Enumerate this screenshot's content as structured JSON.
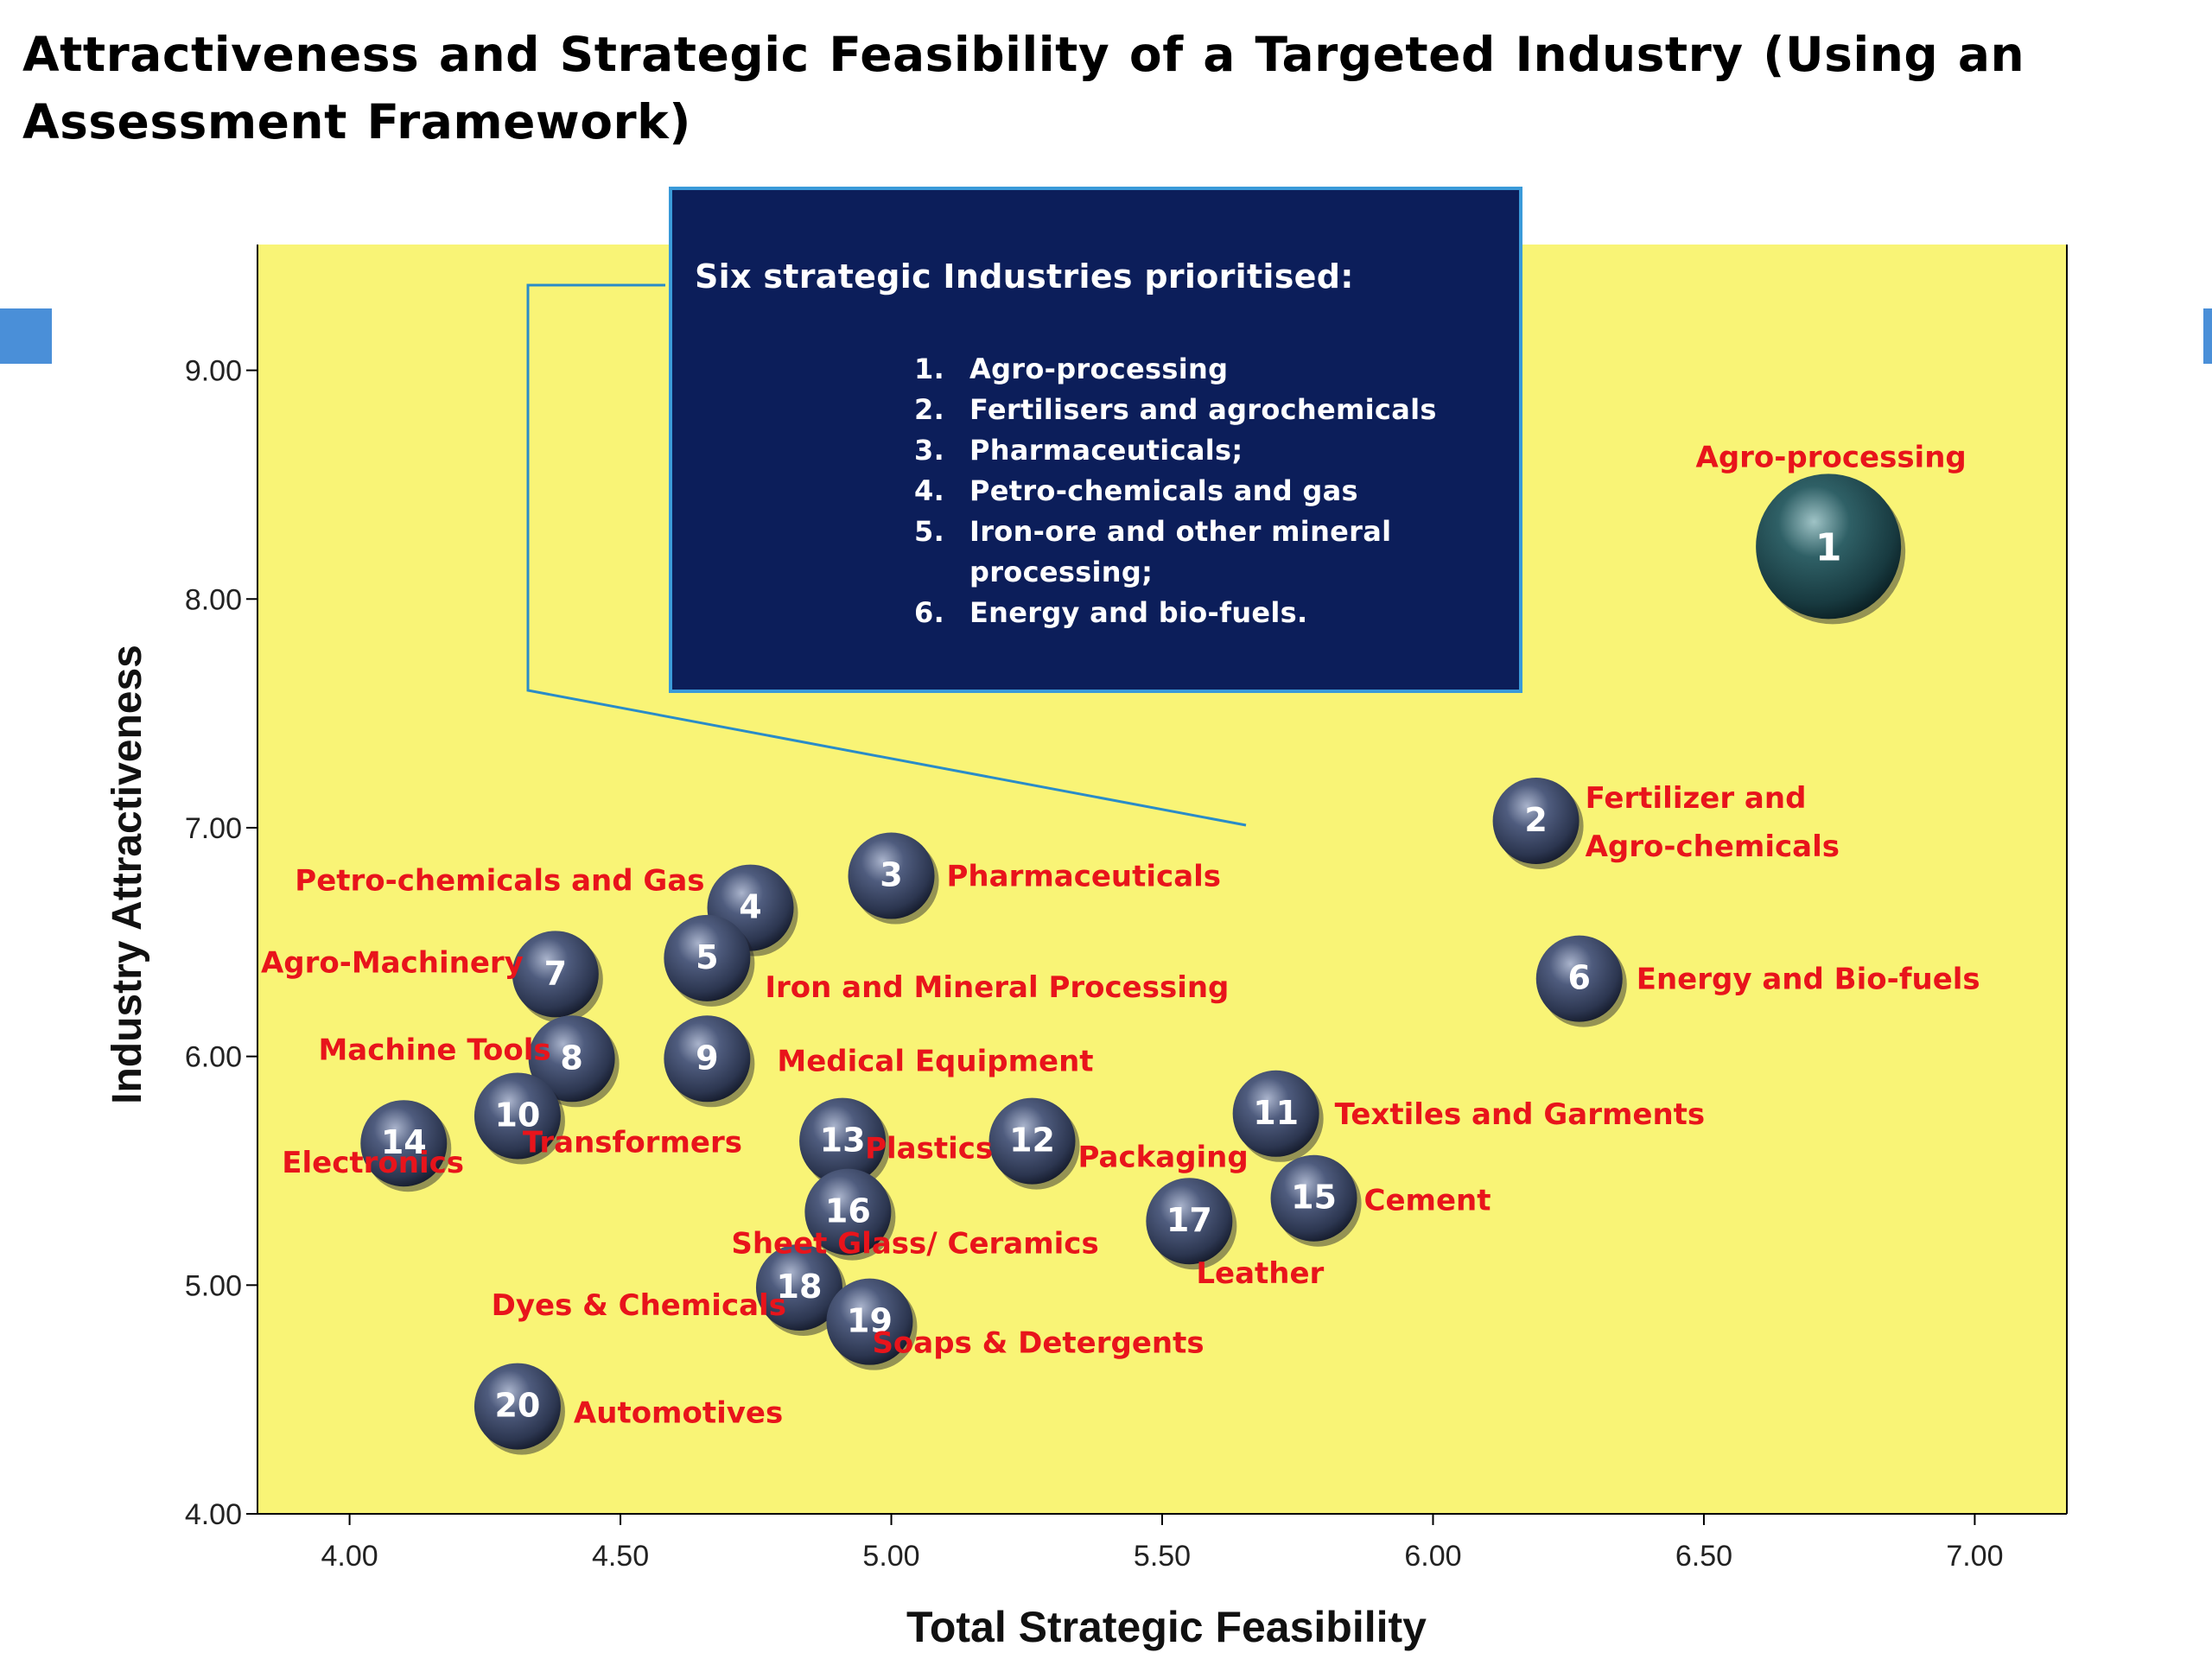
{
  "title": "Attractiveness and Strategic Feasibility of a Targeted Industry (Using   an Assessment Framework)",
  "callout": {
    "heading": "Six strategic Industries prioritised:",
    "items": [
      {
        "num": "1.",
        "text": "Agro-processing"
      },
      {
        "num": "2.",
        "text": "Fertilisers and agrochemicals"
      },
      {
        "num": "3.",
        "text": "Pharmaceuticals;"
      },
      {
        "num": "4.",
        "text": " Petro-chemicals and gas"
      },
      {
        "num": "5.",
        "text": "Iron-ore and other mineral processing;"
      },
      {
        "num": "6.",
        "text": "Energy and bio-fuels."
      }
    ]
  },
  "colors": {
    "plot_background": "#f9f476",
    "label": "#e8141b",
    "callout_background": "#0c1e5a",
    "callout_border": "#3a9ad9",
    "bubble": "#3d4a6a",
    "bubble_large": "#1f4a50",
    "side_marker": "#4a8fd8"
  },
  "chart_data": {
    "type": "scatter",
    "xlabel": "Total Strategic Feasibility",
    "ylabel": "Industry Attractiveness",
    "xlim": [
      3.83,
      7.17
    ],
    "ylim": [
      4.0,
      9.55
    ],
    "xticks": [
      "4.00",
      "4.50",
      "5.00",
      "5.50",
      "6.00",
      "6.50",
      "7.00"
    ],
    "yticks": [
      "4.00",
      "5.00",
      "6.00",
      "7.00",
      "8.00",
      "9.00"
    ],
    "grid": false,
    "points": [
      {
        "id": "1",
        "name": "Agro-processing",
        "x": 6.73,
        "y": 8.23
      },
      {
        "id": "2",
        "name": "Fertilizer and Agro-chemicals",
        "x": 6.19,
        "y": 7.03
      },
      {
        "id": "3",
        "name": "Pharmaceuticals",
        "x": 5.0,
        "y": 6.79
      },
      {
        "id": "4",
        "name": "Petro-chemicals and Gas",
        "x": 4.74,
        "y": 6.65
      },
      {
        "id": "5",
        "name": "Iron and Mineral Processing",
        "x": 4.66,
        "y": 6.43
      },
      {
        "id": "6",
        "name": "Energy and Bio-fuels",
        "x": 6.27,
        "y": 6.34
      },
      {
        "id": "7",
        "name": "Agro-Machinery",
        "x": 4.38,
        "y": 6.36
      },
      {
        "id": "8",
        "name": "Machine Tools",
        "x": 4.41,
        "y": 5.99
      },
      {
        "id": "9",
        "name": "Medical Equipment",
        "x": 4.66,
        "y": 5.99
      },
      {
        "id": "10",
        "name": "Transformers",
        "x": 4.31,
        "y": 5.74
      },
      {
        "id": "11",
        "name": "Textiles and Garments",
        "x": 5.71,
        "y": 5.75
      },
      {
        "id": "12",
        "name": "Packaging",
        "x": 5.26,
        "y": 5.63
      },
      {
        "id": "13",
        "name": "Plastics",
        "x": 4.91,
        "y": 5.63
      },
      {
        "id": "14",
        "name": "Electronics",
        "x": 4.1,
        "y": 5.62
      },
      {
        "id": "15",
        "name": "Cement",
        "x": 5.78,
        "y": 5.38
      },
      {
        "id": "16",
        "name": "Sheet Glass/ Ceramics",
        "x": 4.92,
        "y": 5.32
      },
      {
        "id": "17",
        "name": "Leather",
        "x": 5.55,
        "y": 5.28
      },
      {
        "id": "18",
        "name": "Dyes & Chemicals",
        "x": 4.83,
        "y": 4.99
      },
      {
        "id": "19",
        "name": "Soaps & Detergents",
        "x": 4.96,
        "y": 4.84
      },
      {
        "id": "20",
        "name": "Automotives",
        "x": 4.31,
        "y": 4.47
      }
    ]
  }
}
